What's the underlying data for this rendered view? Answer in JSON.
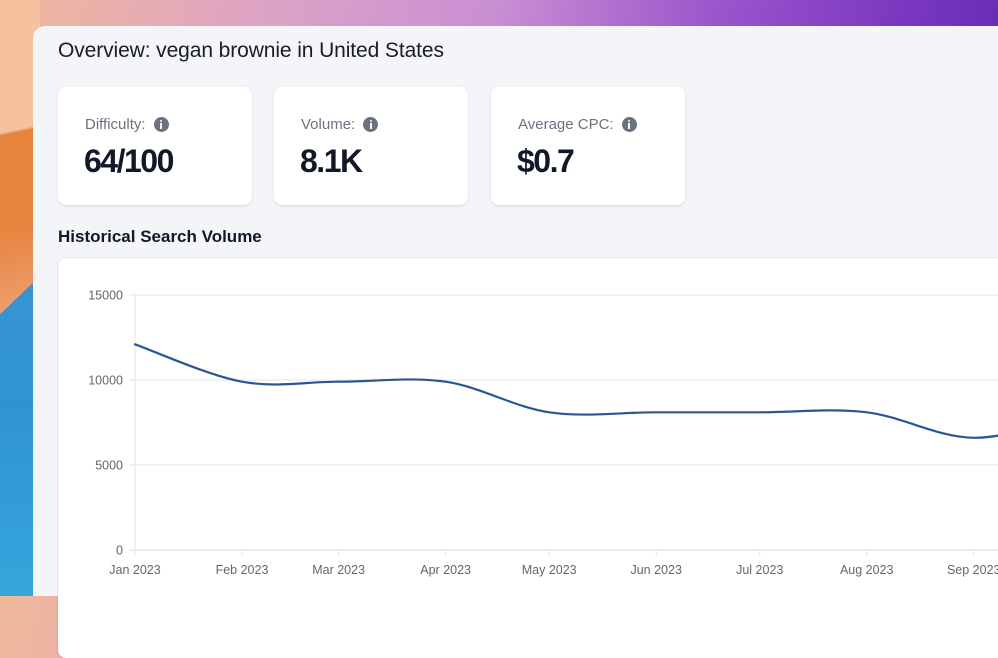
{
  "page": {
    "title": "Overview: vegan brownie in United States"
  },
  "metrics": [
    {
      "label": "Difficulty:",
      "value": "64/100",
      "icon": "info-icon"
    },
    {
      "label": "Volume:",
      "value": "8.1K",
      "icon": "info-icon"
    },
    {
      "label": "Average CPC:",
      "value": "$0.7",
      "icon": "info-icon"
    }
  ],
  "section": {
    "title": "Historical Search Volume"
  },
  "colors": {
    "line": "#2b5597",
    "grid": "#e6e6e6",
    "axis": "#d9d9d9"
  },
  "chart_data": {
    "type": "line",
    "title": "Historical Search Volume",
    "xlabel": "",
    "ylabel": "",
    "x": [
      "2023-01-01",
      "2023-02-01",
      "2023-03-01",
      "2023-04-01",
      "2023-05-01",
      "2023-06-01",
      "2023-07-01",
      "2023-08-01",
      "2023-09-01"
    ],
    "categories": [
      "Jan 2023",
      "Feb 2023",
      "Mar 2023",
      "Apr 2023",
      "May 2023",
      "Jun 2023",
      "Jul 2023",
      "Aug 2023",
      "Sep 2023"
    ],
    "series": [
      {
        "name": "Search Volume",
        "values": [
          12100,
          9900,
          9900,
          9900,
          8100,
          8100,
          8100,
          8100,
          6600
        ]
      }
    ],
    "ylim": [
      0,
      15000
    ],
    "yticks": [
      0,
      5000,
      10000,
      15000
    ],
    "xtick_labels": [
      "Jan 2023",
      "Feb 2023",
      "Mar 2023",
      "Apr 2023",
      "May 2023",
      "Jun 2023",
      "Jul 2023",
      "Aug 2023",
      "Sep 2023"
    ],
    "grid": true,
    "legend": "none",
    "curve": "smooth"
  }
}
